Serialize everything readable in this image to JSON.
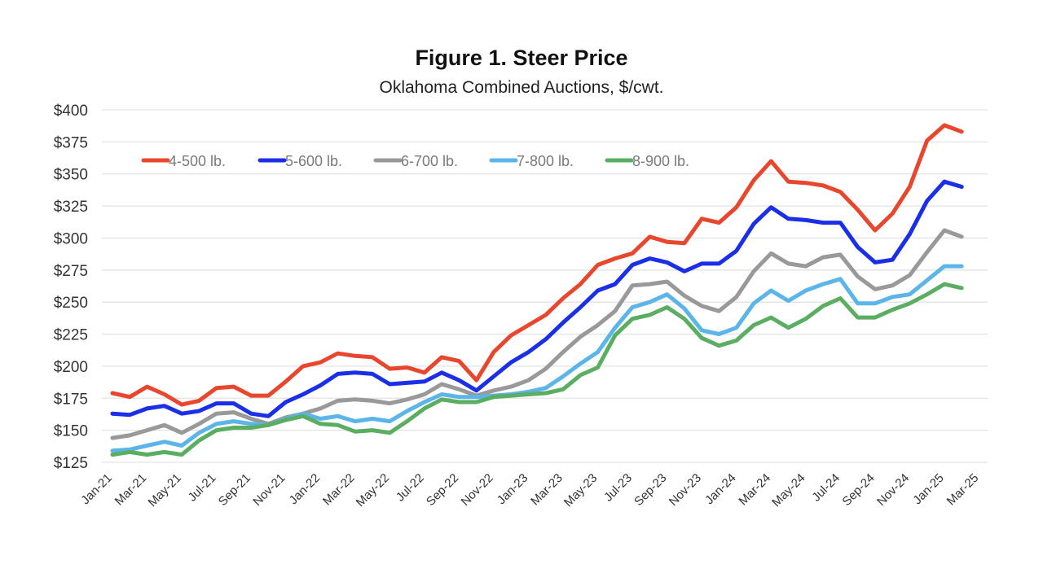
{
  "chart_data": {
    "type": "line",
    "title": "Figure 1. Steer Price",
    "subtitle": "Oklahoma Combined Auctions, $/cwt.",
    "xlabel": "",
    "ylabel": "",
    "ylim": [
      125,
      400
    ],
    "yticks": [
      125,
      150,
      175,
      200,
      225,
      250,
      275,
      300,
      325,
      350,
      375,
      400
    ],
    "ytick_labels": [
      "$125",
      "$150",
      "$175",
      "$200",
      "$225",
      "$250",
      "$275",
      "$300",
      "$325",
      "$350",
      "$375",
      "$400"
    ],
    "grid": true,
    "legend_position": "top-left",
    "xtick_labels": [
      "Jan-21",
      "Mar-21",
      "May-21",
      "Jul-21",
      "Sep-21",
      "Nov-21",
      "Jan-22",
      "Mar-22",
      "May-22",
      "Jul-22",
      "Sep-22",
      "Nov-22",
      "Jan-23",
      "Mar-23",
      "May-23",
      "Jul-23",
      "Sep-23",
      "Nov-23",
      "Jan-24",
      "Mar-24",
      "May-24",
      "Jul-24",
      "Sep-24",
      "Nov-24",
      "Jan-25",
      "Mar-25"
    ],
    "x": [
      "Jan-21",
      "Feb-21",
      "Mar-21",
      "Apr-21",
      "May-21",
      "Jun-21",
      "Jul-21",
      "Aug-21",
      "Sep-21",
      "Oct-21",
      "Nov-21",
      "Dec-21",
      "Jan-22",
      "Feb-22",
      "Mar-22",
      "Apr-22",
      "May-22",
      "Jun-22",
      "Jul-22",
      "Aug-22",
      "Sep-22",
      "Oct-22",
      "Nov-22",
      "Dec-22",
      "Jan-23",
      "Feb-23",
      "Mar-23",
      "Apr-23",
      "May-23",
      "Jun-23",
      "Jul-23",
      "Aug-23",
      "Sep-23",
      "Oct-23",
      "Nov-23",
      "Dec-23",
      "Jan-24",
      "Feb-24",
      "Mar-24",
      "Apr-24",
      "May-24",
      "Jun-24",
      "Jul-24",
      "Aug-24",
      "Sep-24",
      "Oct-24",
      "Nov-24",
      "Dec-24",
      "Jan-25",
      "Feb-25"
    ],
    "series": [
      {
        "name": "4-500 lb.",
        "color": "#e8472e",
        "values": [
          179,
          176,
          184,
          178,
          170,
          173,
          183,
          184,
          177,
          177,
          188,
          200,
          203,
          210,
          208,
          207,
          198,
          199,
          195,
          207,
          204,
          189,
          211,
          224,
          232,
          240,
          253,
          264,
          279,
          284,
          288,
          301,
          297,
          296,
          315,
          312,
          324,
          345,
          360,
          344,
          343,
          341,
          336,
          322,
          306,
          319,
          340,
          376,
          388,
          383
        ]
      },
      {
        "name": "5-600 lb.",
        "color": "#1a2fe6",
        "values": [
          163,
          162,
          167,
          169,
          163,
          165,
          171,
          171,
          163,
          161,
          172,
          178,
          185,
          194,
          195,
          194,
          186,
          187,
          188,
          195,
          189,
          181,
          192,
          203,
          211,
          221,
          234,
          246,
          259,
          264,
          279,
          284,
          281,
          274,
          280,
          280,
          290,
          311,
          324,
          315,
          314,
          312,
          312,
          293,
          281,
          283,
          303,
          329,
          344,
          340
        ]
      },
      {
        "name": "6-700 lb.",
        "color": "#999999",
        "values": [
          144,
          146,
          150,
          154,
          148,
          155,
          163,
          164,
          159,
          155,
          160,
          163,
          167,
          173,
          174,
          173,
          171,
          174,
          178,
          186,
          182,
          177,
          181,
          184,
          189,
          198,
          211,
          223,
          232,
          243,
          263,
          264,
          266,
          255,
          247,
          243,
          254,
          274,
          288,
          280,
          278,
          285,
          287,
          270,
          260,
          263,
          271,
          289,
          306,
          301
        ]
      },
      {
        "name": "7-800 lb.",
        "color": "#5bb5e8",
        "values": [
          134,
          135,
          138,
          141,
          138,
          148,
          155,
          157,
          155,
          154,
          159,
          163,
          159,
          161,
          157,
          159,
          157,
          165,
          172,
          178,
          176,
          176,
          177,
          178,
          180,
          183,
          192,
          202,
          211,
          230,
          246,
          250,
          256,
          245,
          228,
          225,
          230,
          249,
          259,
          251,
          259,
          264,
          268,
          249,
          249,
          254,
          256,
          267,
          278,
          278
        ]
      },
      {
        "name": "8-900 lb.",
        "color": "#5aae61",
        "values": [
          131,
          133,
          131,
          133,
          131,
          142,
          150,
          152,
          152,
          154,
          158,
          161,
          155,
          154,
          149,
          150,
          148,
          157,
          167,
          174,
          172,
          172,
          176,
          177,
          178,
          179,
          182,
          193,
          199,
          224,
          237,
          240,
          246,
          237,
          222,
          216,
          220,
          232,
          238,
          230,
          237,
          247,
          253,
          238,
          238,
          244,
          249,
          256,
          264,
          261
        ]
      }
    ]
  }
}
